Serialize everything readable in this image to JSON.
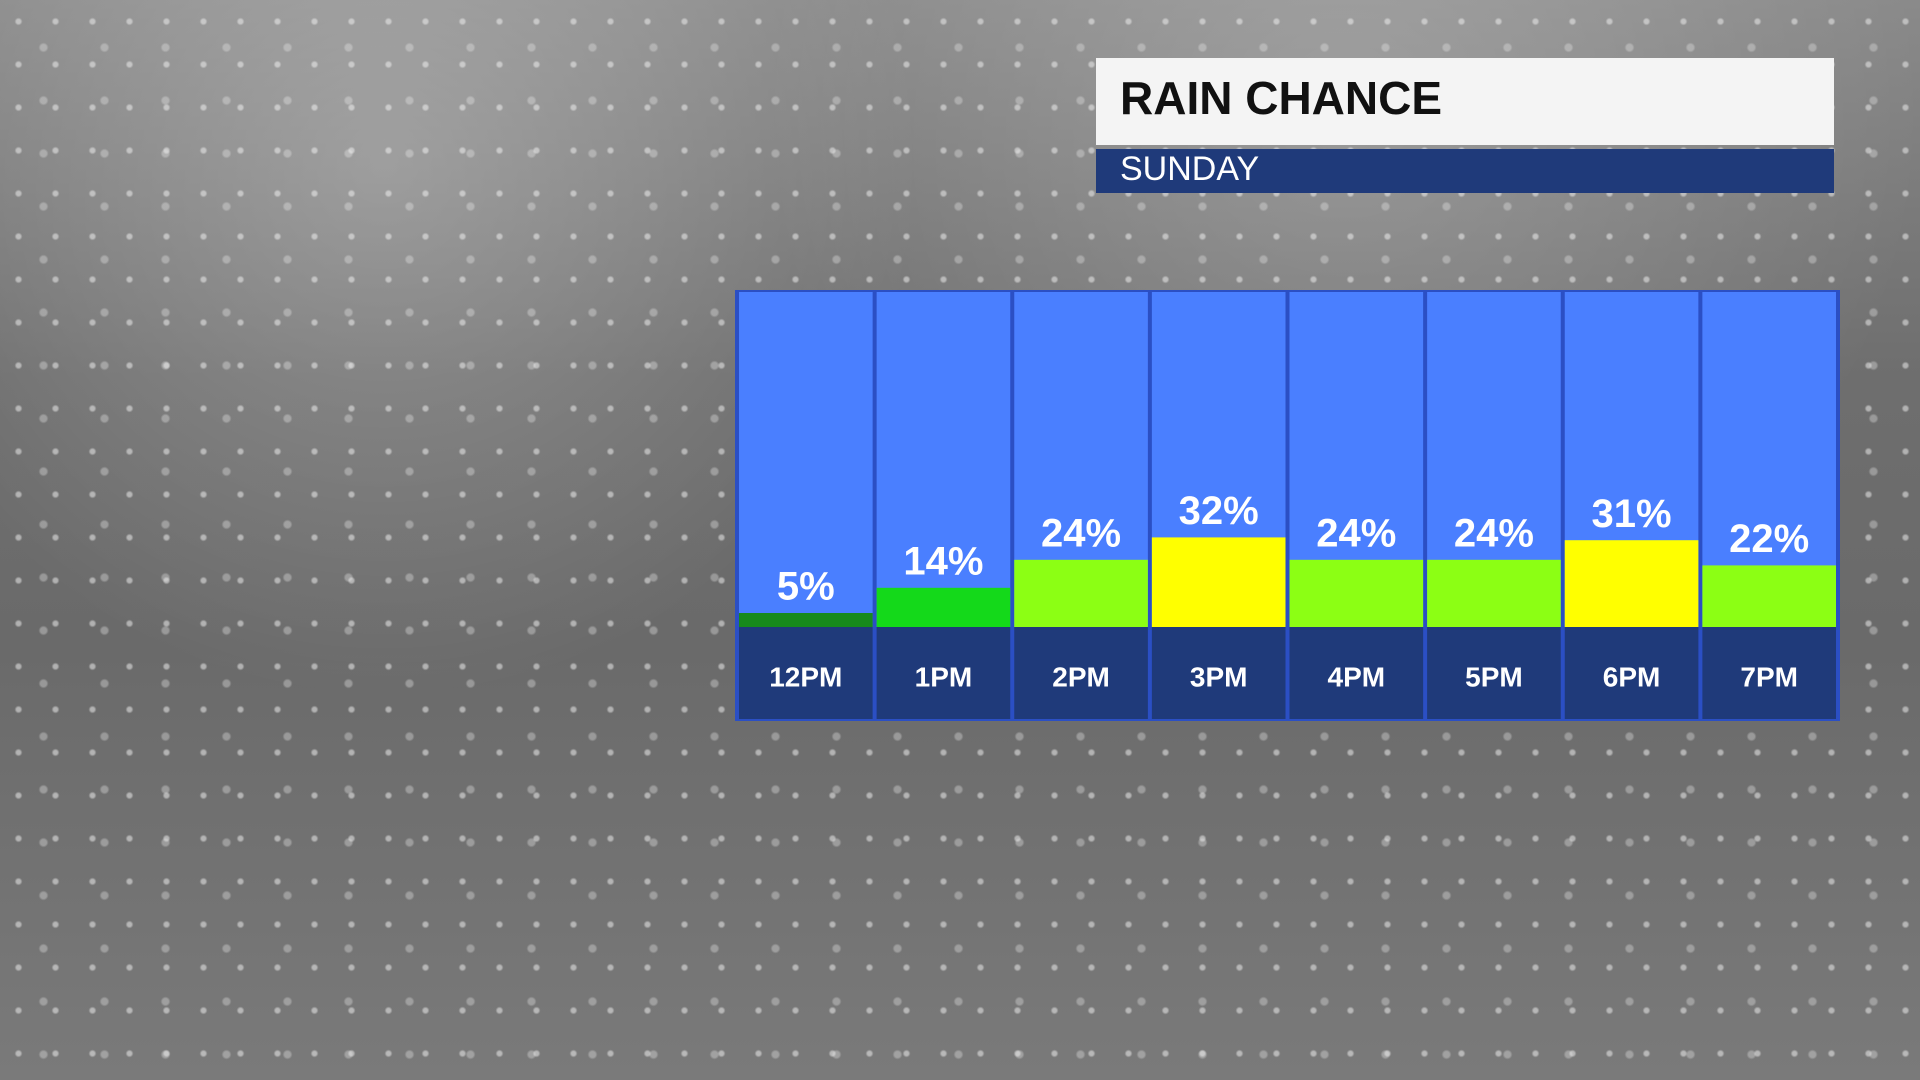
{
  "chart_data": {
    "type": "bar",
    "title": "RAIN CHANCE",
    "subtitle": "SUNDAY",
    "categories": [
      "12PM",
      "1PM",
      "2PM",
      "3PM",
      "4PM",
      "5PM",
      "6PM",
      "7PM"
    ],
    "values": [
      5,
      14,
      24,
      32,
      24,
      24,
      31,
      22
    ],
    "value_labels": [
      "5%",
      "14%",
      "24%",
      "32%",
      "24%",
      "24%",
      "31%",
      "22%"
    ],
    "colors": [
      "#178a1c",
      "#14d91a",
      "#8cff14",
      "#ffff00",
      "#8cff14",
      "#8cff14",
      "#ffff00",
      "#8cff14"
    ]
  }
}
